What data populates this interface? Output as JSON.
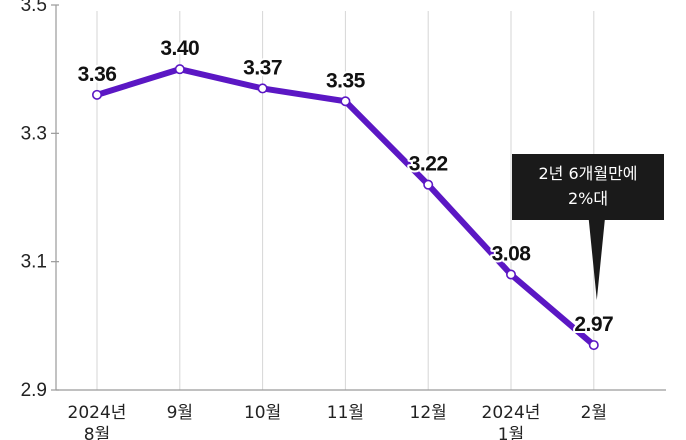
{
  "chart_data": {
    "type": "line",
    "title": "",
    "xlabel": "",
    "ylabel": "",
    "categories": [
      "2024년\n8월",
      "9월",
      "10월",
      "11월",
      "12월",
      "2024년\n1월",
      "2월"
    ],
    "series": [
      {
        "name": "",
        "values": [
          3.36,
          3.4,
          3.37,
          3.35,
          3.22,
          3.08,
          2.97
        ],
        "labels": [
          "3.36",
          "3.40",
          "3.37",
          "3.35",
          "3.22",
          "3.08",
          "2.97"
        ]
      }
    ],
    "ylim": [
      2.9,
      3.5
    ],
    "yticks": [
      "3.5",
      "3.3",
      "3.1",
      "2.9"
    ],
    "ytick_values": [
      3.5,
      3.3,
      3.1,
      2.9
    ],
    "grid": "vertical",
    "line_color": "#5b17c4",
    "annotation": {
      "lines": [
        "2년 6개월만에",
        "2%대"
      ],
      "target_index": 6
    }
  }
}
